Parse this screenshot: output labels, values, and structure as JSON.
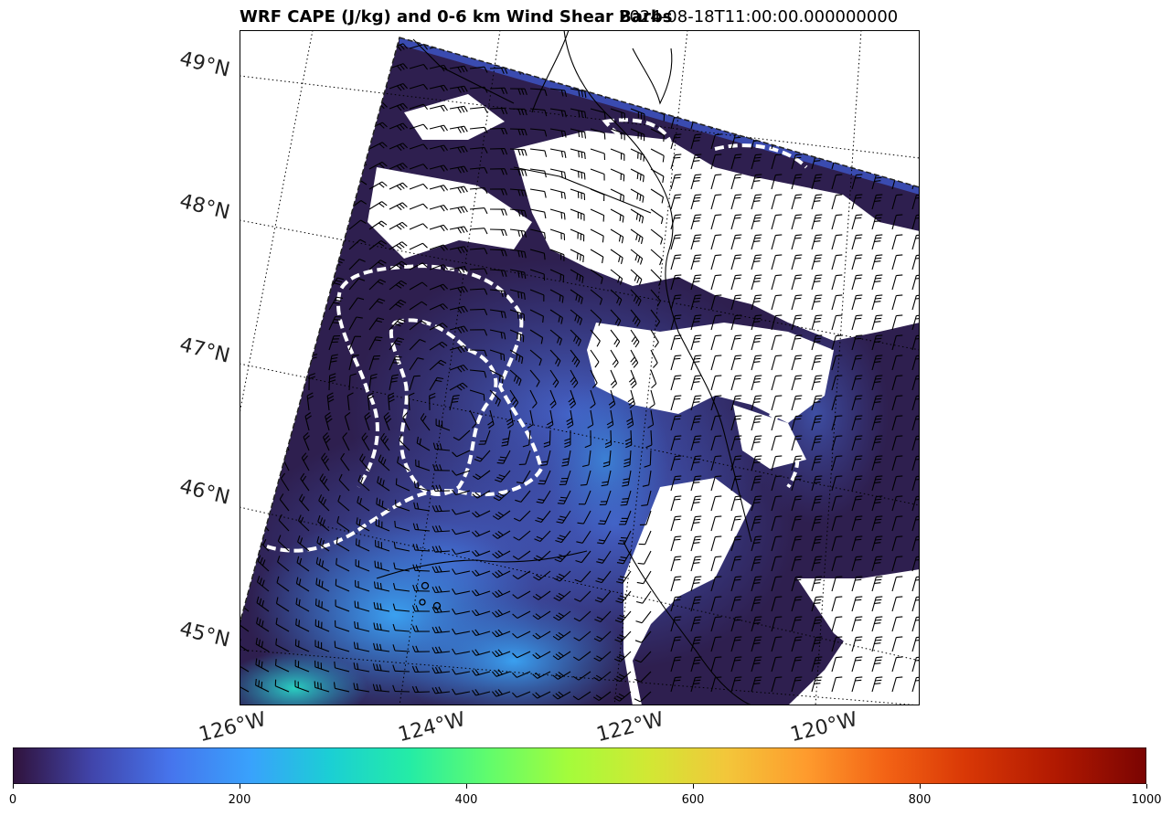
{
  "title": {
    "left": "WRF CAPE (J/kg) and 0-6 km Wind Shear Barbs",
    "right": "2024-08-18T11:00:00.000000000"
  },
  "map": {
    "lat_labels": [
      "49°N",
      "48°N",
      "47°N",
      "46°N",
      "45°N"
    ],
    "lon_labels": [
      "126°W",
      "124°W",
      "122°W",
      "120°W"
    ],
    "colors": {
      "field_base": "#2e1f4f",
      "field_mid": "#3c4aa8",
      "field_bright": "#3a8fe8",
      "field_cyan": "#28c0d8",
      "contour": "#ffffff",
      "barb": "#000000",
      "coast": "#000000"
    }
  },
  "colorbar": {
    "min": 0,
    "max": 1000,
    "ticks": [
      "0",
      "200",
      "400",
      "600",
      "800",
      "1000"
    ],
    "tick_values": [
      0,
      200,
      400,
      600,
      800,
      1000
    ],
    "colormap": "turbo"
  }
}
